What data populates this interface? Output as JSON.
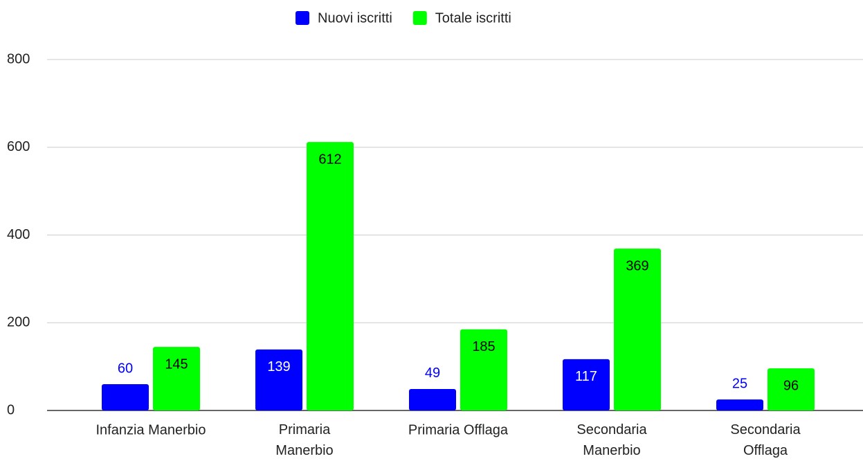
{
  "chart_data": {
    "type": "bar",
    "categories": [
      "Infanzia Manerbio",
      "Primaria\nManerbio",
      "Primaria Offlaga",
      "Secondaria\nManerbio",
      "Secondaria\nOfflaga"
    ],
    "series": [
      {
        "name": "Nuovi iscritti",
        "color": "#0000ff",
        "values": [
          60,
          139,
          49,
          117,
          25
        ]
      },
      {
        "name": "Totale iscritti",
        "color": "#00ff00",
        "values": [
          145,
          612,
          185,
          369,
          96
        ]
      }
    ],
    "ylim": [
      0,
      800
    ],
    "yticks": [
      0,
      200,
      400,
      600,
      800
    ],
    "grid": true,
    "legend": "top"
  }
}
